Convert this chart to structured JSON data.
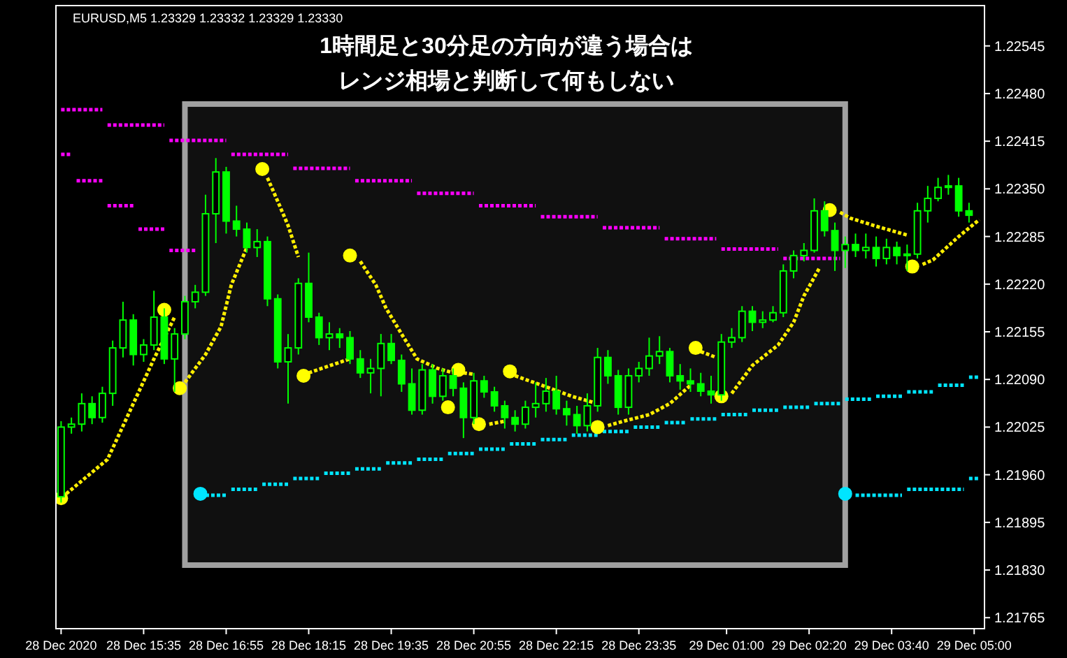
{
  "chart_data": {
    "type": "candlestick",
    "title": "1時間足と30分足の方向が違う場合は",
    "subtitle": "レンジ相場と判断して何もしない",
    "annotations": [
      "EURUSD,M5 1.23329 1.23332 1.23329 1.23330"
    ],
    "color": "#00ff00",
    "x": [
      "2020-12-28T14:15",
      "2020-12-28T14:25",
      "2020-12-28T14:35",
      "2020-12-28T14:45",
      "2020-12-28T14:55",
      "2020-12-28T15:05",
      "2020-12-28T15:15",
      "2020-12-28T15:25",
      "2020-12-28T15:35",
      "2020-12-28T15:45",
      "2020-12-28T15:55",
      "2020-12-28T16:05",
      "2020-12-28T16:15",
      "2020-12-28T16:25",
      "2020-12-28T16:35",
      "2020-12-28T16:45",
      "2020-12-28T16:55",
      "2020-12-28T17:05",
      "2020-12-28T17:15",
      "2020-12-28T17:25",
      "2020-12-28T17:35",
      "2020-12-28T17:45",
      "2020-12-28T17:55",
      "2020-12-28T18:05",
      "2020-12-28T18:15",
      "2020-12-28T18:25",
      "2020-12-28T18:35",
      "2020-12-28T18:45",
      "2020-12-28T18:55",
      "2020-12-28T19:05",
      "2020-12-28T19:15",
      "2020-12-28T19:25",
      "2020-12-28T19:35",
      "2020-12-28T19:45",
      "2020-12-28T19:55",
      "2020-12-28T20:05",
      "2020-12-28T20:15",
      "2020-12-28T20:25",
      "2020-12-28T20:35",
      "2020-12-28T20:45",
      "2020-12-28T20:55",
      "2020-12-28T21:05",
      "2020-12-28T21:15",
      "2020-12-28T21:25",
      "2020-12-28T21:35",
      "2020-12-28T21:45",
      "2020-12-28T21:55",
      "2020-12-28T22:05",
      "2020-12-28T22:15",
      "2020-12-28T22:25",
      "2020-12-28T22:35",
      "2020-12-28T22:45",
      "2020-12-28T22:55",
      "2020-12-28T23:05",
      "2020-12-28T23:15",
      "2020-12-28T23:25",
      "2020-12-28T23:35",
      "2020-12-28T23:45",
      "2020-12-28T23:55",
      "2020-12-29T00:05",
      "2020-12-29T00:15",
      "2020-12-29T00:25",
      "2020-12-29T00:35",
      "2020-12-29T00:45",
      "2020-12-29T00:55",
      "2020-12-29T01:05",
      "2020-12-29T01:15",
      "2020-12-29T01:25",
      "2020-12-29T01:35",
      "2020-12-29T01:45",
      "2020-12-29T01:55",
      "2020-12-29T02:05",
      "2020-12-29T02:15",
      "2020-12-29T02:25",
      "2020-12-29T02:35",
      "2020-12-29T02:45",
      "2020-12-29T02:55",
      "2020-12-29T03:05",
      "2020-12-29T03:15",
      "2020-12-29T03:25",
      "2020-12-29T03:35",
      "2020-12-29T03:45",
      "2020-12-29T03:55",
      "2020-12-29T04:05",
      "2020-12-29T04:15",
      "2020-12-29T04:25",
      "2020-12-29T04:35",
      "2020-12-29T04:45",
      "2020-12-29T04:55"
    ],
    "ohlc": [
      [
        1.2193,
        1.22033,
        1.21922,
        1.22025
      ],
      [
        1.22025,
        1.22038,
        1.22016,
        1.22029
      ],
      [
        1.22029,
        1.22071,
        1.22019,
        1.22057
      ],
      [
        1.22057,
        1.22067,
        1.22029,
        1.22038
      ],
      [
        1.22038,
        1.2208,
        1.22031,
        1.22071
      ],
      [
        1.22071,
        1.22143,
        1.22054,
        1.22133
      ],
      [
        1.22133,
        1.22196,
        1.2212,
        1.22171
      ],
      [
        1.22171,
        1.22179,
        1.22109,
        1.22124
      ],
      [
        1.22124,
        1.22145,
        1.22114,
        1.22137
      ],
      [
        1.22137,
        1.22211,
        1.2213,
        1.22175
      ],
      [
        1.22175,
        1.22187,
        1.22111,
        1.22118
      ],
      [
        1.22118,
        1.2216,
        1.22073,
        1.22152
      ],
      [
        1.22152,
        1.22204,
        1.22145,
        1.22196
      ],
      [
        1.22196,
        1.22219,
        1.22187,
        1.22209
      ],
      [
        1.22209,
        1.22342,
        1.22204,
        1.22316
      ],
      [
        1.22316,
        1.22392,
        1.22276,
        1.22373
      ],
      [
        1.22373,
        1.2238,
        1.22289,
        1.22306
      ],
      [
        1.22306,
        1.22327,
        1.22285,
        1.22295
      ],
      [
        1.22295,
        1.22304,
        1.22263,
        1.2227
      ],
      [
        1.2227,
        1.22295,
        1.22257,
        1.22278
      ],
      [
        1.22278,
        1.22285,
        1.2219,
        1.222
      ],
      [
        1.222,
        1.22206,
        1.22105,
        1.22114
      ],
      [
        1.22114,
        1.22152,
        1.22057,
        1.22133
      ],
      [
        1.22133,
        1.22228,
        1.22124,
        1.22221
      ],
      [
        1.22221,
        1.22263,
        1.22168,
        1.22175
      ],
      [
        1.22175,
        1.22181,
        1.22137,
        1.22147
      ],
      [
        1.22147,
        1.22168,
        1.2213,
        1.22152
      ],
      [
        1.22152,
        1.2216,
        1.22133,
        1.22147
      ],
      [
        1.22147,
        1.22156,
        1.22111,
        1.22118
      ],
      [
        1.22118,
        1.2213,
        1.22092,
        1.22099
      ],
      [
        1.22099,
        1.22118,
        1.22071,
        1.22105
      ],
      [
        1.22105,
        1.22152,
        1.22067,
        1.22139
      ],
      [
        1.22139,
        1.22152,
        1.22111,
        1.22116
      ],
      [
        1.22116,
        1.22124,
        1.22073,
        1.22084
      ],
      [
        1.22084,
        1.22105,
        1.22042,
        1.22048
      ],
      [
        1.22048,
        1.22111,
        1.22042,
        1.22103
      ],
      [
        1.22103,
        1.22111,
        1.22057,
        1.22067
      ],
      [
        1.22067,
        1.22105,
        1.22061,
        1.22095
      ],
      [
        1.22095,
        1.22105,
        1.22067,
        1.22078
      ],
      [
        1.22078,
        1.22086,
        1.2201,
        1.22038
      ],
      [
        1.22038,
        1.22099,
        1.22029,
        1.22088
      ],
      [
        1.22088,
        1.22095,
        1.22065,
        1.22073
      ],
      [
        1.22073,
        1.2208,
        1.22046,
        1.22054
      ],
      [
        1.22054,
        1.22061,
        1.22023,
        1.22038
      ],
      [
        1.22038,
        1.22048,
        1.22019,
        1.22029
      ],
      [
        1.22029,
        1.22061,
        1.22023,
        1.22052
      ],
      [
        1.22052,
        1.22086,
        1.22038,
        1.22057
      ],
      [
        1.22057,
        1.22092,
        1.22046,
        1.22074
      ],
      [
        1.22074,
        1.22095,
        1.22042,
        1.2205
      ],
      [
        1.2205,
        1.22061,
        1.22027,
        1.22042
      ],
      [
        1.22042,
        1.22054,
        1.22016,
        1.22027
      ],
      [
        1.22027,
        1.22071,
        1.22019,
        1.22054
      ],
      [
        1.22054,
        1.22133,
        1.22046,
        1.2212
      ],
      [
        1.2212,
        1.2213,
        1.22084,
        1.22095
      ],
      [
        1.22095,
        1.22103,
        1.22042,
        1.22052
      ],
      [
        1.22052,
        1.22105,
        1.22042,
        1.22095
      ],
      [
        1.22095,
        1.22114,
        1.22086,
        1.22105
      ],
      [
        1.22105,
        1.22147,
        1.22095,
        1.22122
      ],
      [
        1.22122,
        1.22149,
        1.22111,
        1.22128
      ],
      [
        1.22128,
        1.22133,
        1.22086,
        1.22095
      ],
      [
        1.22095,
        1.22111,
        1.22076,
        1.22088
      ],
      [
        1.22088,
        1.22105,
        1.22073,
        1.22084
      ],
      [
        1.22084,
        1.22099,
        1.22067,
        1.22074
      ],
      [
        1.22074,
        1.22095,
        1.22057,
        1.22069
      ],
      [
        1.22069,
        1.22152,
        1.22061,
        1.22141
      ],
      [
        1.22141,
        1.2216,
        1.22133,
        1.22147
      ],
      [
        1.22147,
        1.2219,
        1.22141,
        1.22183
      ],
      [
        1.22183,
        1.2219,
        1.22156,
        1.22168
      ],
      [
        1.22168,
        1.22183,
        1.2216,
        1.22171
      ],
      [
        1.22171,
        1.2219,
        1.22168,
        1.22181
      ],
      [
        1.22181,
        1.22247,
        1.22175,
        1.22238
      ],
      [
        1.22238,
        1.22266,
        1.22228,
        1.22259
      ],
      [
        1.22259,
        1.22276,
        1.22251,
        1.22266
      ],
      [
        1.22266,
        1.22337,
        1.22263,
        1.2232
      ],
      [
        1.2232,
        1.22333,
        1.22285,
        1.22293
      ],
      [
        1.22293,
        1.22304,
        1.22238,
        1.22266
      ],
      [
        1.22266,
        1.22285,
        1.22242,
        1.22274
      ],
      [
        1.22274,
        1.22289,
        1.22257,
        1.22266
      ],
      [
        1.22266,
        1.22289,
        1.22255,
        1.2227
      ],
      [
        1.2227,
        1.22285,
        1.22244,
        1.22255
      ],
      [
        1.22255,
        1.22282,
        1.22247,
        1.2227
      ],
      [
        1.2227,
        1.22278,
        1.22247,
        1.22259
      ],
      [
        1.22259,
        1.22274,
        1.22238,
        1.22261
      ],
      [
        1.22261,
        1.22331,
        1.22255,
        1.2232
      ],
      [
        1.2232,
        1.22354,
        1.22304,
        1.22337
      ],
      [
        1.22337,
        1.22365,
        1.22333,
        1.22352
      ],
      [
        1.22352,
        1.22369,
        1.22342,
        1.22354
      ],
      [
        1.22354,
        1.22365,
        1.22312,
        1.2232
      ],
      [
        1.2232,
        1.22331,
        1.22304,
        1.22314
      ]
    ],
    "series": [
      {
        "type": "line",
        "color": "#ff00ff",
        "line_style": "dotted",
        "x": [
          "2020-12-28T14:15",
          "2020-12-28T14:55"
        ],
        "values": [
          1.22458,
          1.22458
        ]
      },
      {
        "type": "line",
        "color": "#ff00ff",
        "line_style": "dotted",
        "x": [
          "2020-12-28T15:00",
          "2020-12-28T15:55"
        ],
        "values": [
          1.22437,
          1.22437
        ]
      },
      {
        "type": "line",
        "color": "#ff00ff",
        "line_style": "dotted",
        "x": [
          "2020-12-28T16:00",
          "2020-12-28T16:55"
        ],
        "values": [
          1.22416,
          1.22416
        ]
      },
      {
        "type": "line",
        "color": "#ff00ff",
        "line_style": "dotted",
        "x": [
          "2020-12-28T17:00",
          "2020-12-28T17:55"
        ],
        "values": [
          1.22397,
          1.22397
        ]
      },
      {
        "type": "line",
        "color": "#ff00ff",
        "line_style": "dotted",
        "x": [
          "2020-12-28T18:00",
          "2020-12-28T18:55"
        ],
        "values": [
          1.22378,
          1.22378
        ]
      },
      {
        "type": "line",
        "color": "#ff00ff",
        "line_style": "dotted",
        "x": [
          "2020-12-28T19:00",
          "2020-12-28T19:55"
        ],
        "values": [
          1.22361,
          1.22361
        ]
      },
      {
        "type": "line",
        "color": "#ff00ff",
        "line_style": "dotted",
        "x": [
          "2020-12-28T20:00",
          "2020-12-28T20:55"
        ],
        "values": [
          1.22344,
          1.22344
        ]
      },
      {
        "type": "line",
        "color": "#ff00ff",
        "line_style": "dotted",
        "x": [
          "2020-12-28T21:00",
          "2020-12-28T21:55"
        ],
        "values": [
          1.22327,
          1.22327
        ]
      },
      {
        "type": "line",
        "color": "#ff00ff",
        "line_style": "dotted",
        "x": [
          "2020-12-28T22:00",
          "2020-12-28T22:55"
        ],
        "values": [
          1.22312,
          1.22312
        ]
      },
      {
        "type": "line",
        "color": "#ff00ff",
        "line_style": "dotted",
        "x": [
          "2020-12-28T23:00",
          "2020-12-28T23:55"
        ],
        "values": [
          1.22297,
          1.22297
        ]
      },
      {
        "type": "line",
        "color": "#ff00ff",
        "line_style": "dotted",
        "x": [
          "2020-12-29T00:00",
          "2020-12-29T00:50"
        ],
        "values": [
          1.22282,
          1.22282
        ]
      },
      {
        "type": "line",
        "color": "#ff00ff",
        "line_style": "dotted",
        "x": [
          "2020-12-29T00:55",
          "2020-12-29T01:50"
        ],
        "values": [
          1.22268,
          1.22268
        ]
      },
      {
        "type": "line",
        "color": "#ff00ff",
        "line_style": "dotted",
        "x": [
          "2020-12-29T01:55",
          "2020-12-29T02:50"
        ],
        "values": [
          1.22255,
          1.22255
        ]
      },
      {
        "type": "line",
        "color": "#ff00ff",
        "line_style": "dotted",
        "x": [
          "2020-12-28T14:15",
          "2020-12-28T14:25"
        ],
        "values": [
          1.22397,
          1.22397
        ]
      },
      {
        "type": "line",
        "color": "#ff00ff",
        "line_style": "dotted",
        "x": [
          "2020-12-28T14:30",
          "2020-12-28T14:55"
        ],
        "values": [
          1.22361,
          1.22361
        ]
      },
      {
        "type": "line",
        "color": "#ff00ff",
        "line_style": "dotted",
        "x": [
          "2020-12-28T15:00",
          "2020-12-28T15:25"
        ],
        "values": [
          1.22327,
          1.22327
        ]
      },
      {
        "type": "line",
        "color": "#ff00ff",
        "line_style": "dotted",
        "x": [
          "2020-12-28T15:30",
          "2020-12-28T15:55"
        ],
        "values": [
          1.22295,
          1.22295
        ]
      },
      {
        "type": "line",
        "color": "#ff00ff",
        "line_style": "dotted",
        "x": [
          "2020-12-28T16:00",
          "2020-12-28T16:25"
        ],
        "values": [
          1.22266,
          1.22266
        ]
      },
      {
        "type": "line",
        "color": "#00e5ff",
        "line_style": "dotted",
        "x": [
          "2020-12-28T16:35",
          "2020-12-28T16:55"
        ],
        "values": [
          1.21932,
          1.21932
        ]
      },
      {
        "type": "line",
        "color": "#00e5ff",
        "line_style": "dotted",
        "x": [
          "2020-12-28T17:00",
          "2020-12-28T17:25"
        ],
        "values": [
          1.2194,
          1.2194
        ]
      },
      {
        "type": "line",
        "color": "#00e5ff",
        "line_style": "dotted",
        "x": [
          "2020-12-28T17:30",
          "2020-12-28T17:55"
        ],
        "values": [
          1.21947,
          1.21947
        ]
      },
      {
        "type": "line",
        "color": "#00e5ff",
        "line_style": "dotted",
        "x": [
          "2020-12-28T18:00",
          "2020-12-28T18:25"
        ],
        "values": [
          1.21955,
          1.21955
        ]
      },
      {
        "type": "line",
        "color": "#00e5ff",
        "line_style": "dotted",
        "x": [
          "2020-12-28T18:30",
          "2020-12-28T18:55"
        ],
        "values": [
          1.21962,
          1.21962
        ]
      },
      {
        "type": "line",
        "color": "#00e5ff",
        "line_style": "dotted",
        "x": [
          "2020-12-28T19:00",
          "2020-12-28T19:25"
        ],
        "values": [
          1.21968,
          1.21968
        ]
      },
      {
        "type": "line",
        "color": "#00e5ff",
        "line_style": "dotted",
        "x": [
          "2020-12-28T19:30",
          "2020-12-28T19:55"
        ],
        "values": [
          1.21976,
          1.21976
        ]
      },
      {
        "type": "line",
        "color": "#00e5ff",
        "line_style": "dotted",
        "x": [
          "2020-12-28T20:00",
          "2020-12-28T20:25"
        ],
        "values": [
          1.21981,
          1.21981
        ]
      },
      {
        "type": "line",
        "color": "#00e5ff",
        "line_style": "dotted",
        "x": [
          "2020-12-28T20:30",
          "2020-12-28T20:55"
        ],
        "values": [
          1.21989,
          1.21989
        ]
      },
      {
        "type": "line",
        "color": "#00e5ff",
        "line_style": "dotted",
        "x": [
          "2020-12-28T21:00",
          "2020-12-28T21:25"
        ],
        "values": [
          1.21995,
          1.21995
        ]
      },
      {
        "type": "line",
        "color": "#00e5ff",
        "line_style": "dotted",
        "x": [
          "2020-12-28T21:30",
          "2020-12-28T21:55"
        ],
        "values": [
          1.22002,
          1.22002
        ]
      },
      {
        "type": "line",
        "color": "#00e5ff",
        "line_style": "dotted",
        "x": [
          "2020-12-28T22:00",
          "2020-12-28T22:25"
        ],
        "values": [
          1.22008,
          1.22008
        ]
      },
      {
        "type": "line",
        "color": "#00e5ff",
        "line_style": "dotted",
        "x": [
          "2020-12-28T22:30",
          "2020-12-28T22:55"
        ],
        "values": [
          1.22014,
          1.22014
        ]
      },
      {
        "type": "line",
        "color": "#00e5ff",
        "line_style": "dotted",
        "x": [
          "2020-12-28T23:00",
          "2020-12-28T23:25"
        ],
        "values": [
          1.22019,
          1.22019
        ]
      },
      {
        "type": "line",
        "color": "#00e5ff",
        "line_style": "dotted",
        "x": [
          "2020-12-28T23:30",
          "2020-12-28T23:55"
        ],
        "values": [
          1.22025,
          1.22025
        ]
      },
      {
        "type": "line",
        "color": "#00e5ff",
        "line_style": "dotted",
        "x": [
          "2020-12-29T00:00",
          "2020-12-29T00:20"
        ],
        "values": [
          1.22031,
          1.22031
        ]
      },
      {
        "type": "line",
        "color": "#00e5ff",
        "line_style": "dotted",
        "x": [
          "2020-12-29T00:25",
          "2020-12-29T00:50"
        ],
        "values": [
          1.22036,
          1.22036
        ]
      },
      {
        "type": "line",
        "color": "#00e5ff",
        "line_style": "dotted",
        "x": [
          "2020-12-29T00:55",
          "2020-12-29T01:20"
        ],
        "values": [
          1.22042,
          1.22042
        ]
      },
      {
        "type": "line",
        "color": "#00e5ff",
        "line_style": "dotted",
        "x": [
          "2020-12-29T01:25",
          "2020-12-29T01:50"
        ],
        "values": [
          1.22048,
          1.22048
        ]
      },
      {
        "type": "line",
        "color": "#00e5ff",
        "line_style": "dotted",
        "x": [
          "2020-12-29T01:55",
          "2020-12-29T02:20"
        ],
        "values": [
          1.22052,
          1.22052
        ]
      },
      {
        "type": "line",
        "color": "#00e5ff",
        "line_style": "dotted",
        "x": [
          "2020-12-29T02:25",
          "2020-12-29T02:50"
        ],
        "values": [
          1.22057,
          1.22057
        ]
      },
      {
        "type": "line",
        "color": "#00e5ff",
        "line_style": "dotted",
        "x": [
          "2020-12-29T02:55",
          "2020-12-29T03:20"
        ],
        "values": [
          1.22063,
          1.22063
        ]
      },
      {
        "type": "line",
        "color": "#00e5ff",
        "line_style": "dotted",
        "x": [
          "2020-12-29T03:25",
          "2020-12-29T03:50"
        ],
        "values": [
          1.22067,
          1.22067
        ]
      },
      {
        "type": "line",
        "color": "#00e5ff",
        "line_style": "dotted",
        "x": [
          "2020-12-29T03:55",
          "2020-12-29T04:20"
        ],
        "values": [
          1.22073,
          1.22073
        ]
      },
      {
        "type": "line",
        "color": "#00e5ff",
        "line_style": "dotted",
        "x": [
          "2020-12-29T04:25",
          "2020-12-29T04:50"
        ],
        "values": [
          1.22082,
          1.22082
        ]
      },
      {
        "type": "line",
        "color": "#00e5ff",
        "line_style": "dotted",
        "x": [
          "2020-12-29T04:55",
          "2020-12-29T05:05"
        ],
        "values": [
          1.22093,
          1.22093
        ]
      },
      {
        "type": "line",
        "color": "#00e5ff",
        "line_style": "dotted",
        "x": [
          "2020-12-29T03:05",
          "2020-12-29T03:50"
        ],
        "values": [
          1.21932,
          1.21932
        ]
      },
      {
        "type": "line",
        "color": "#00e5ff",
        "line_style": "dotted",
        "x": [
          "2020-12-29T03:55",
          "2020-12-29T04:50"
        ],
        "values": [
          1.2194,
          1.2194
        ]
      },
      {
        "type": "line",
        "color": "#00e5ff",
        "line_style": "dotted",
        "x": [
          "2020-12-29T04:55",
          "2020-12-29T05:05"
        ],
        "values": [
          1.21955,
          1.21955
        ]
      },
      {
        "type": "line",
        "color": "#ffee00",
        "line_style": "dotted",
        "x": [
          "2020-12-28T14:20",
          "2020-12-28T15:00",
          "2020-12-28T15:25",
          "2020-12-28T15:45",
          "2020-12-28T16:05"
        ],
        "values": [
          1.21934,
          1.21981,
          1.22057,
          1.22118,
          1.22175
        ]
      },
      {
        "type": "line",
        "color": "#ffee00",
        "line_style": "dotted",
        "x": [
          "2020-12-28T16:15",
          "2020-12-28T16:35",
          "2020-12-28T16:50",
          "2020-12-28T17:00",
          "2020-12-28T17:15"
        ],
        "values": [
          1.22086,
          1.22124,
          1.22162,
          1.22219,
          1.2227
        ]
      },
      {
        "type": "line",
        "color": "#ffee00",
        "line_style": "dotted",
        "x": [
          "2020-12-28T17:35",
          "2020-12-28T17:45",
          "2020-12-28T17:55",
          "2020-12-28T18:05"
        ],
        "values": [
          1.22365,
          1.22333,
          1.223,
          1.22257
        ]
      },
      {
        "type": "line",
        "color": "#ffee00",
        "line_style": "dotted",
        "x": [
          "2020-12-28T18:15",
          "2020-12-28T18:40",
          "2020-12-28T18:55"
        ],
        "values": [
          1.22099,
          1.22111,
          1.22118
        ]
      },
      {
        "type": "line",
        "color": "#ffee00",
        "line_style": "dotted",
        "x": [
          "2020-12-28T19:05",
          "2020-12-28T19:20",
          "2020-12-28T19:30",
          "2020-12-28T19:45",
          "2020-12-28T20:00",
          "2020-12-28T20:20",
          "2020-12-28T20:35"
        ],
        "values": [
          1.22251,
          1.22219,
          1.22187,
          1.22152,
          1.22118,
          1.22105,
          1.22099
        ]
      },
      {
        "type": "line",
        "color": "#ffee00",
        "line_style": "dotted",
        "x": [
          "2020-12-28T20:45",
          "2020-12-28T20:55"
        ],
        "values": [
          1.22099,
          1.22097
        ]
      },
      {
        "type": "line",
        "color": "#ffee00",
        "line_style": "dotted",
        "x": [
          "2020-12-28T21:10",
          "2020-12-28T21:25"
        ],
        "values": [
          1.22029,
          1.22033
        ]
      },
      {
        "type": "line",
        "color": "#ffee00",
        "line_style": "dotted",
        "x": [
          "2020-12-28T21:35",
          "2020-12-28T22:05",
          "2020-12-28T22:30",
          "2020-12-28T22:50"
        ],
        "values": [
          1.22095,
          1.2208,
          1.22067,
          1.22059
        ]
      },
      {
        "type": "line",
        "color": "#ffee00",
        "line_style": "dotted",
        "x": [
          "2020-12-28T23:05",
          "2020-12-28T23:20",
          "2020-12-28T23:45",
          "2020-12-29T00:05",
          "2020-12-29T00:25"
        ],
        "values": [
          1.22027,
          1.22033,
          1.22042,
          1.22057,
          1.22082
        ]
      },
      {
        "type": "line",
        "color": "#ffee00",
        "line_style": "dotted",
        "x": [
          "2020-12-29T00:35",
          "2020-12-29T00:50"
        ],
        "values": [
          1.22128,
          1.2212
        ]
      },
      {
        "type": "line",
        "color": "#ffee00",
        "line_style": "dotted",
        "x": [
          "2020-12-29T01:05",
          "2020-12-29T01:25",
          "2020-12-29T01:50",
          "2020-12-29T02:05",
          "2020-12-29T02:15",
          "2020-12-29T02:30"
        ],
        "values": [
          1.22071,
          1.22109,
          1.22137,
          1.22168,
          1.22204,
          1.22242
        ]
      },
      {
        "type": "line",
        "color": "#ffee00",
        "line_style": "dotted",
        "x": [
          "2020-12-29T02:50",
          "2020-12-29T03:00",
          "2020-12-29T03:25",
          "2020-12-29T03:55"
        ],
        "values": [
          1.22318,
          1.2231,
          1.22299,
          1.22287
        ]
      },
      {
        "type": "line",
        "color": "#ffee00",
        "line_style": "dotted",
        "x": [
          "2020-12-29T04:10",
          "2020-12-29T04:20",
          "2020-12-29T04:45",
          "2020-12-29T05:05"
        ],
        "values": [
          1.22247,
          1.22253,
          1.22285,
          1.22308
        ]
      },
      {
        "type": "scatter",
        "color": "#ffff00",
        "marker": "circle",
        "x": [
          "2020-12-28T14:15",
          "2020-12-28T15:55",
          "2020-12-28T16:10",
          "2020-12-28T17:30",
          "2020-12-28T18:10",
          "2020-12-28T18:55",
          "2020-12-28T20:30",
          "2020-12-28T20:40",
          "2020-12-28T21:00",
          "2020-12-28T21:30",
          "2020-12-28T22:55",
          "2020-12-29T00:30",
          "2020-12-29T00:55",
          "2020-12-29T02:40",
          "2020-12-29T04:00"
        ],
        "values": [
          1.21928,
          1.22185,
          1.22078,
          1.22377,
          1.22095,
          1.22259,
          1.22052,
          1.22103,
          1.22029,
          1.22101,
          1.22025,
          1.22133,
          1.22067,
          1.22321,
          1.22244
        ]
      },
      {
        "type": "scatter",
        "color": "#00e5ff",
        "marker": "circle",
        "x": [
          "2020-12-28T16:30",
          "2020-12-29T02:55"
        ],
        "values": [
          1.21934,
          1.21934
        ]
      }
    ],
    "bands": [
      {
        "axis": "x",
        "from": "2020-12-28T16:15",
        "to": "2020-12-29T02:55",
        "color": "#a0a0a0"
      }
    ],
    "xlim": [
      "2020-12-28T14:10",
      "2020-12-29T05:10"
    ],
    "ylim": [
      1.2175,
      1.226
    ],
    "xticks": [
      {
        "value": "2020-12-28T14:15",
        "label": "28 Dec 2020"
      },
      {
        "value": "2020-12-28T15:35",
        "label": "28 Dec 15:35"
      },
      {
        "value": "2020-12-28T16:55",
        "label": "28 Dec 16:55"
      },
      {
        "value": "2020-12-28T18:15",
        "label": "28 Dec 18:15"
      },
      {
        "value": "2020-12-28T19:35",
        "label": "28 Dec 19:35"
      },
      {
        "value": "2020-12-28T20:55",
        "label": "28 Dec 20:55"
      },
      {
        "value": "2020-12-28T22:15",
        "label": "28 Dec 22:15"
      },
      {
        "value": "2020-12-28T23:35",
        "label": "28 Dec 23:35"
      },
      {
        "value": "2020-12-29T01:00",
        "label": "29 Dec 01:00"
      },
      {
        "value": "2020-12-29T02:20",
        "label": "29 Dec 02:20"
      },
      {
        "value": "2020-12-29T03:40",
        "label": "29 Dec 03:40"
      },
      {
        "value": "2020-12-29T05:00",
        "label": "29 Dec 05:00"
      }
    ],
    "yticks": [
      {
        "value": 1.22545,
        "label": "1.22545"
      },
      {
        "value": 1.2248,
        "label": "1.22480"
      },
      {
        "value": 1.22415,
        "label": "1.22415"
      },
      {
        "value": 1.2235,
        "label": "1.22350"
      },
      {
        "value": 1.22285,
        "label": "1.22285"
      },
      {
        "value": 1.2222,
        "label": "1.22220"
      },
      {
        "value": 1.22155,
        "label": "1.22155"
      },
      {
        "value": 1.2209,
        "label": "1.22090"
      },
      {
        "value": 1.22025,
        "label": "1.22025"
      },
      {
        "value": 1.2196,
        "label": "1.21960"
      },
      {
        "value": 1.21895,
        "label": "1.21895"
      },
      {
        "value": 1.2183,
        "label": "1.21830"
      },
      {
        "value": 1.21765,
        "label": "1.21765"
      }
    ]
  }
}
